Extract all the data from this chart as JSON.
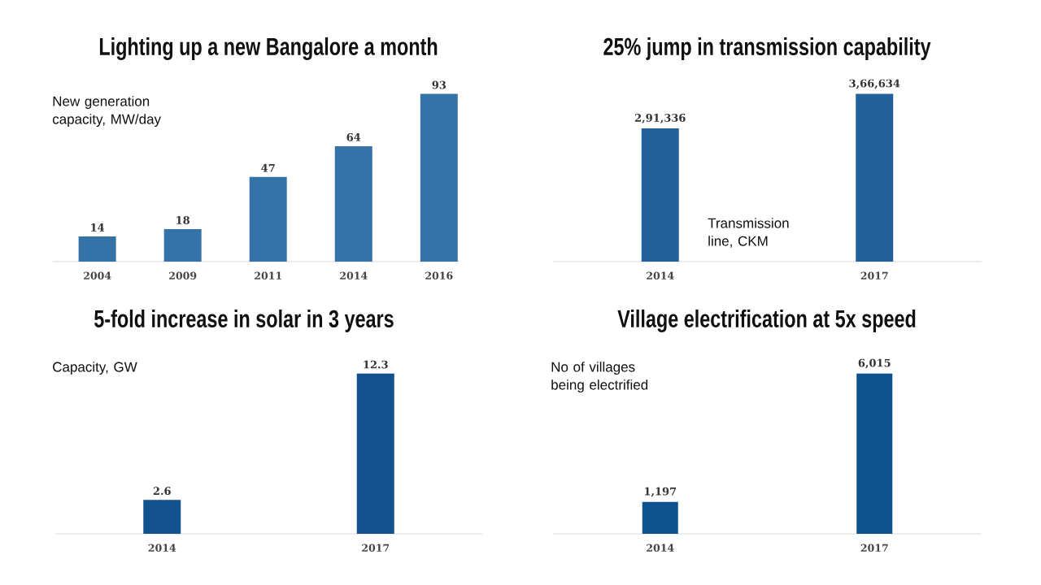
{
  "chart_data": [
    {
      "type": "bar",
      "title": "Lighting up a new Bangalore a month",
      "categories": [
        "2004",
        "2009",
        "2011",
        "2014",
        "2016"
      ],
      "values": [
        14,
        18,
        47,
        64,
        93
      ],
      "value_labels": [
        "14",
        "18",
        "47",
        "64",
        "93"
      ],
      "color": "#3572a8",
      "annotations": [
        "New generation capacity, MW/day"
      ]
    },
    {
      "type": "bar",
      "title": "25% jump in transmission capability",
      "categories": [
        "2014",
        "2017"
      ],
      "values": [
        291336,
        366634
      ],
      "value_labels": [
        "2,91,336",
        "3,66,634"
      ],
      "color": "#22609b",
      "annotations": [
        "Transmission line, CKM"
      ]
    },
    {
      "type": "bar",
      "title": "5-fold increase in solar in 3 years",
      "categories": [
        "2014",
        "2017"
      ],
      "values": [
        2.6,
        12.3
      ],
      "value_labels": [
        "2.6",
        "12.3"
      ],
      "color": "#13518f",
      "annotations": [
        "Capacity, GW"
      ]
    },
    {
      "type": "bar",
      "title": "Village electrification at 5x speed",
      "categories": [
        "2014",
        "2017"
      ],
      "values": [
        1197,
        6015
      ],
      "value_labels": [
        "1,197",
        "6,015"
      ],
      "color": "#0f5290",
      "annotations": [
        "No of villages being electrified"
      ]
    }
  ]
}
